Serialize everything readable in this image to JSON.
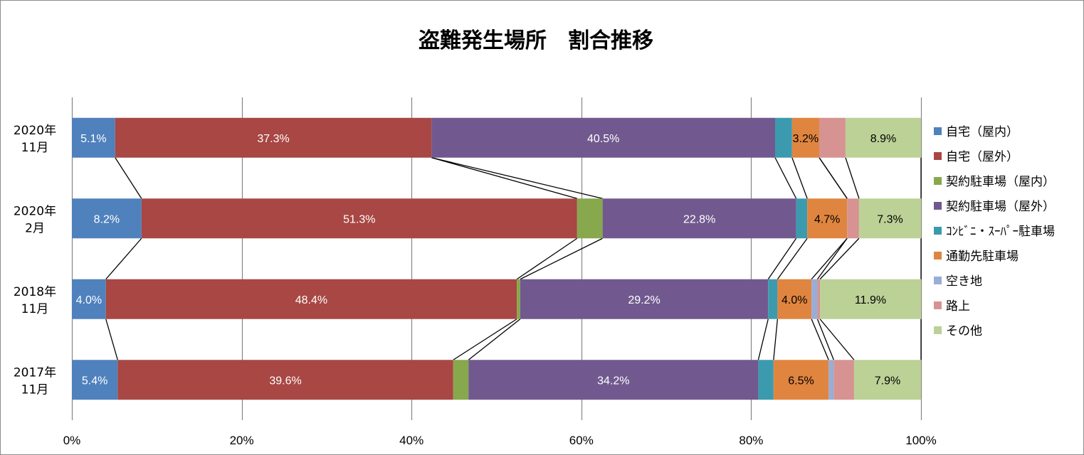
{
  "chart_data": {
    "type": "bar",
    "orientation": "horizontal",
    "stacked": "percent",
    "title": "盗難発生場所　割合推移",
    "x_tick_labels": [
      "0%",
      "20%",
      "40%",
      "60%",
      "80%",
      "100%"
    ],
    "xlim": [
      0,
      100
    ],
    "grid": true,
    "legend_position": "right",
    "series_lines": true,
    "categories": [
      {
        "line1": "2020年",
        "line2": "11月"
      },
      {
        "line1": "2020年",
        "line2": "2月"
      },
      {
        "line1": "2018年",
        "line2": "11月"
      },
      {
        "line1": "2017年",
        "line2": "11月"
      }
    ],
    "series": [
      {
        "name": "自宅（屋内）",
        "color": "#4f81bd",
        "values": [
          5.1,
          8.2,
          4.0,
          5.4
        ],
        "labels": [
          "5.1%",
          "8.2%",
          "4.0%",
          "5.4%"
        ]
      },
      {
        "name": "自宅（屋外）",
        "color": "#a84744",
        "values": [
          37.3,
          51.3,
          48.4,
          39.6
        ],
        "labels": [
          "37.3%",
          "51.3%",
          "48.4%",
          "39.6%"
        ]
      },
      {
        "name": "契約駐車場（屋内）",
        "color": "#87a84c",
        "values": [
          0.0,
          3.0,
          0.4,
          1.8
        ],
        "labels": [
          "",
          "",
          "",
          ""
        ]
      },
      {
        "name": "契約駐車場（屋外）",
        "color": "#71598f",
        "values": [
          40.5,
          22.8,
          29.2,
          34.2
        ],
        "labels": [
          "40.5%",
          "22.8%",
          "29.2%",
          "34.2%"
        ]
      },
      {
        "name": "ｺﾝﾋﾞﾆ・ｽｰﾊﾟｰ駐車場",
        "color": "#3c9aae",
        "values": [
          2.0,
          1.3,
          1.1,
          1.8
        ],
        "labels": [
          "",
          "",
          "",
          ""
        ]
      },
      {
        "name": "通勤先駐車場",
        "color": "#e0853f",
        "values": [
          3.2,
          4.7,
          4.0,
          6.5
        ],
        "labels": [
          "3.2%",
          "4.7%",
          "4.0%",
          "6.5%"
        ]
      },
      {
        "name": "空き地",
        "color": "#9aadd6",
        "values": [
          0.0,
          0.0,
          0.7,
          0.6
        ],
        "labels": [
          "",
          "",
          "",
          ""
        ]
      },
      {
        "name": "路上",
        "color": "#d69391",
        "values": [
          3.1,
          1.4,
          0.3,
          2.4
        ],
        "labels": [
          "",
          "",
          "",
          ""
        ]
      },
      {
        "name": "その他",
        "color": "#bcd196",
        "values": [
          8.9,
          7.3,
          11.9,
          7.9
        ],
        "labels": [
          "8.9%",
          "7.3%",
          "11.9%",
          "7.9%"
        ]
      }
    ]
  }
}
